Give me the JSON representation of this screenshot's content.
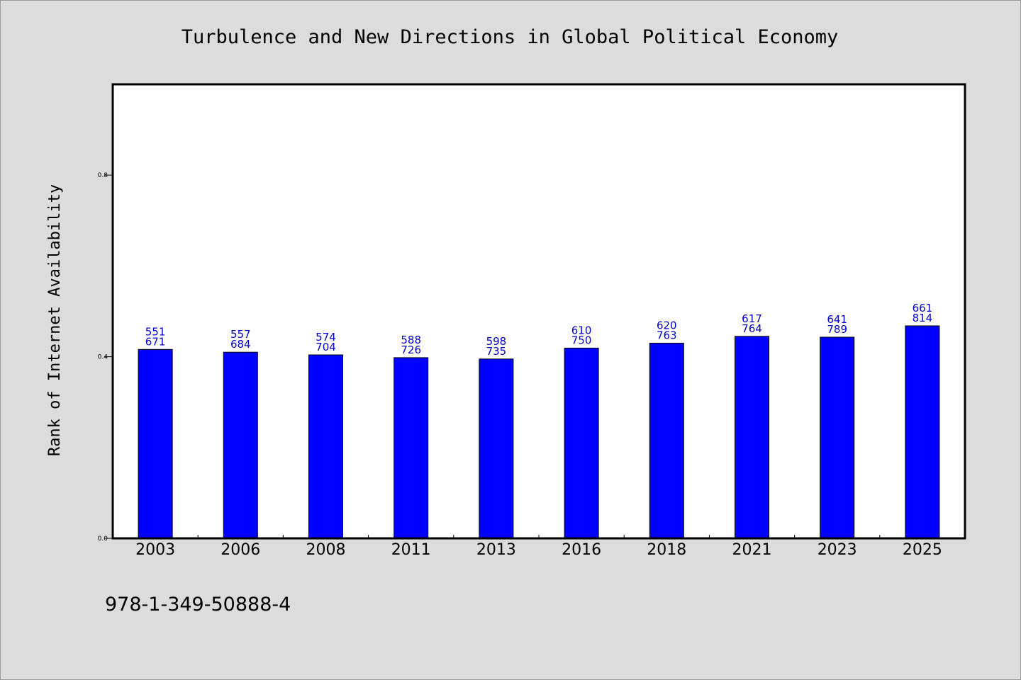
{
  "chart_data": {
    "type": "bar",
    "title": "Turbulence and New Directions in Global Political Economy",
    "xlabel": "",
    "ylabel": "Rank of Internet Availability",
    "ylim": [
      0.0,
      1.0
    ],
    "yticks": [
      0.0,
      0.4,
      0.8
    ],
    "ytick_labels": [
      "0.0",
      "0.4",
      "0.8"
    ],
    "grid": false,
    "categories": [
      "2003",
      "2006",
      "2008",
      "2011",
      "2013",
      "2016",
      "2018",
      "2021",
      "2023",
      "2025"
    ],
    "values": [
      0.416,
      0.41,
      0.404,
      0.398,
      0.395,
      0.419,
      0.43,
      0.445,
      0.443,
      0.468
    ],
    "bar_labels_top": [
      "551",
      "557",
      "574",
      "588",
      "598",
      "610",
      "620",
      "617",
      "641",
      "661"
    ],
    "bar_labels_bottom": [
      "671",
      "684",
      "704",
      "726",
      "735",
      "750",
      "763",
      "764",
      "789",
      "814"
    ],
    "bar_color": "#0000ff",
    "label_color": "#0000cc"
  },
  "footer": {
    "isbn": "978-1-349-50888-4"
  }
}
